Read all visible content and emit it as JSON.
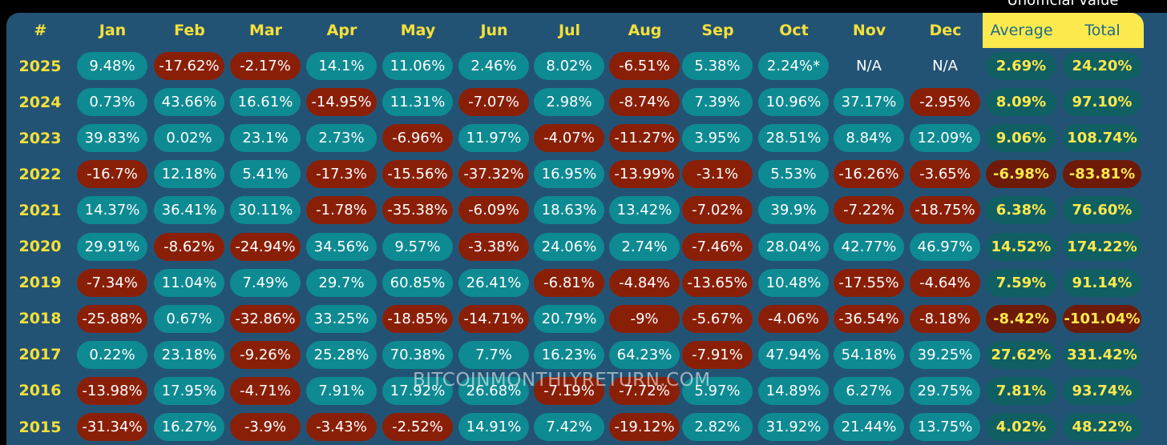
{
  "note": "Unofficial value",
  "header": [
    "#",
    "Jan",
    "Feb",
    "Mar",
    "Apr",
    "May",
    "Jun",
    "Jul",
    "Aug",
    "Sep",
    "Oct",
    "Nov",
    "Dec",
    "Average",
    "Total"
  ],
  "watermark": "BITCOINMONTHLYRETURN.COM",
  "colors": {
    "board": "#235374",
    "positive": "#0e8a92",
    "negative": "#8a1f08",
    "highlight": "#fbe94e",
    "year_text": "#f5e03a"
  },
  "rows": [
    {
      "year": "2025",
      "months": [
        "9.48%",
        "-17.62%",
        "-2.17%",
        "14.1%",
        "11.06%",
        "2.46%",
        "8.02%",
        "-6.51%",
        "5.38%",
        "2.24%*",
        "N/A",
        "N/A"
      ],
      "average": "2.69%",
      "total": "24.20%"
    },
    {
      "year": "2024",
      "months": [
        "0.73%",
        "43.66%",
        "16.61%",
        "-14.95%",
        "11.31%",
        "-7.07%",
        "2.98%",
        "-8.74%",
        "7.39%",
        "10.96%",
        "37.17%",
        "-2.95%"
      ],
      "average": "8.09%",
      "total": "97.10%"
    },
    {
      "year": "2023",
      "months": [
        "39.83%",
        "0.02%",
        "23.1%",
        "2.73%",
        "-6.96%",
        "11.97%",
        "-4.07%",
        "-11.27%",
        "3.95%",
        "28.51%",
        "8.84%",
        "12.09%"
      ],
      "average": "9.06%",
      "total": "108.74%"
    },
    {
      "year": "2022",
      "months": [
        "-16.7%",
        "12.18%",
        "5.41%",
        "-17.3%",
        "-15.56%",
        "-37.32%",
        "16.95%",
        "-13.99%",
        "-3.1%",
        "5.53%",
        "-16.26%",
        "-3.65%"
      ],
      "average": "-6.98%",
      "total": "-83.81%"
    },
    {
      "year": "2021",
      "months": [
        "14.37%",
        "36.41%",
        "30.11%",
        "-1.78%",
        "-35.38%",
        "-6.09%",
        "18.63%",
        "13.42%",
        "-7.02%",
        "39.9%",
        "-7.22%",
        "-18.75%"
      ],
      "average": "6.38%",
      "total": "76.60%"
    },
    {
      "year": "2020",
      "months": [
        "29.91%",
        "-8.62%",
        "-24.94%",
        "34.56%",
        "9.57%",
        "-3.38%",
        "24.06%",
        "2.74%",
        "-7.46%",
        "28.04%",
        "42.77%",
        "46.97%"
      ],
      "average": "14.52%",
      "total": "174.22%"
    },
    {
      "year": "2019",
      "months": [
        "-7.34%",
        "11.04%",
        "7.49%",
        "29.7%",
        "60.85%",
        "26.41%",
        "-6.81%",
        "-4.84%",
        "-13.65%",
        "10.48%",
        "-17.55%",
        "-4.64%"
      ],
      "average": "7.59%",
      "total": "91.14%"
    },
    {
      "year": "2018",
      "months": [
        "-25.88%",
        "0.67%",
        "-32.86%",
        "33.25%",
        "-18.85%",
        "-14.71%",
        "20.79%",
        "-9%",
        "-5.67%",
        "-4.06%",
        "-36.54%",
        "-8.18%"
      ],
      "average": "-8.42%",
      "total": "-101.04%"
    },
    {
      "year": "2017",
      "months": [
        "0.22%",
        "23.18%",
        "-9.26%",
        "25.28%",
        "70.38%",
        "7.7%",
        "16.23%",
        "64.23%",
        "-7.91%",
        "47.94%",
        "54.18%",
        "39.25%"
      ],
      "average": "27.62%",
      "total": "331.42%"
    },
    {
      "year": "2016",
      "months": [
        "-13.98%",
        "17.95%",
        "-4.71%",
        "7.91%",
        "17.92%",
        "26.68%",
        "-7.19%",
        "-7.72%",
        "5.97%",
        "14.89%",
        "6.27%",
        "29.75%"
      ],
      "average": "7.81%",
      "total": "93.74%"
    },
    {
      "year": "2015",
      "months": [
        "-31.34%",
        "16.27%",
        "-3.9%",
        "-3.43%",
        "-2.52%",
        "14.91%",
        "7.42%",
        "-19.12%",
        "2.82%",
        "31.92%",
        "21.44%",
        "13.75%"
      ],
      "average": "4.02%",
      "total": "48.22%"
    }
  ]
}
